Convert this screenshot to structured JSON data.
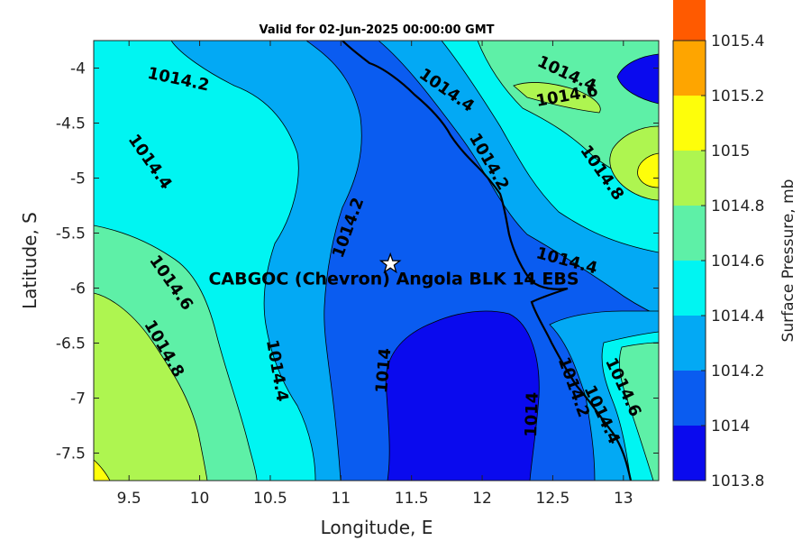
{
  "chart_data": {
    "type": "contour",
    "title": "Valid for 02-Jun-2025 00:00:00 GMT",
    "xlabel": "Longitude, E",
    "ylabel": "Latitude, S",
    "xlim": [
      9.25,
      13.25
    ],
    "ylim": [
      -7.75,
      -3.75
    ],
    "xticks": [
      9.5,
      10,
      10.5,
      11,
      11.5,
      12,
      12.5,
      13
    ],
    "yticks": [
      -4,
      -4.5,
      -5,
      -5.5,
      -6,
      -6.5,
      -7,
      -7.5
    ],
    "colorbar": {
      "label": "Surface Pressure, mb",
      "levels": [
        1013.8,
        1014,
        1014.2,
        1014.4,
        1014.6,
        1014.8,
        1015,
        1015.2,
        1015.4
      ],
      "colors": [
        "#0a0aee",
        "#0a5cf0",
        "#03a9f4",
        "#00f5f2",
        "#5ef0a7",
        "#aef550",
        "#fefe0a",
        "#fea500",
        "#ff5a00"
      ]
    },
    "contour_labels": [
      {
        "text": "1014.2",
        "lon": 9.85,
        "lat": -4.1,
        "angle": 12
      },
      {
        "text": "1014.4",
        "lon": 9.65,
        "lat": -4.85,
        "angle": 55
      },
      {
        "text": "1014.6",
        "lon": 9.8,
        "lat": -5.95,
        "angle": 55
      },
      {
        "text": "1014.8",
        "lon": 9.75,
        "lat": -6.55,
        "angle": 60
      },
      {
        "text": "1014.2",
        "lon": 11.05,
        "lat": -5.45,
        "angle": -70
      },
      {
        "text": "1014.4",
        "lon": 10.55,
        "lat": -6.75,
        "angle": 80
      },
      {
        "text": "1014",
        "lon": 11.3,
        "lat": -6.75,
        "angle": -85
      },
      {
        "text": "1014.4",
        "lon": 11.75,
        "lat": -4.2,
        "angle": 35
      },
      {
        "text": "1014.2",
        "lon": 12.05,
        "lat": -4.85,
        "angle": 60
      },
      {
        "text": "1014.4",
        "lon": 12.6,
        "lat": -4.05,
        "angle": 25
      },
      {
        "text": "1014.6",
        "lon": 12.6,
        "lat": -4.25,
        "angle": -10
      },
      {
        "text": "1014.8",
        "lon": 12.85,
        "lat": -4.95,
        "angle": 55
      },
      {
        "text": "1014.4",
        "lon": 12.6,
        "lat": -5.75,
        "angle": 15
      },
      {
        "text": "1014",
        "lon": 12.35,
        "lat": -7.15,
        "angle": -88
      },
      {
        "text": "1014.2",
        "lon": 12.65,
        "lat": -6.9,
        "angle": 70
      },
      {
        "text": "1014.4",
        "lon": 12.85,
        "lat": -7.15,
        "angle": 65
      },
      {
        "text": "1014.6",
        "lon": 13.0,
        "lat": -6.9,
        "angle": 65
      }
    ],
    "site": {
      "label": "CABGOC (Chevron)  Angola BLK 14  EBS",
      "lon": 11.35,
      "lat": -5.78
    }
  }
}
